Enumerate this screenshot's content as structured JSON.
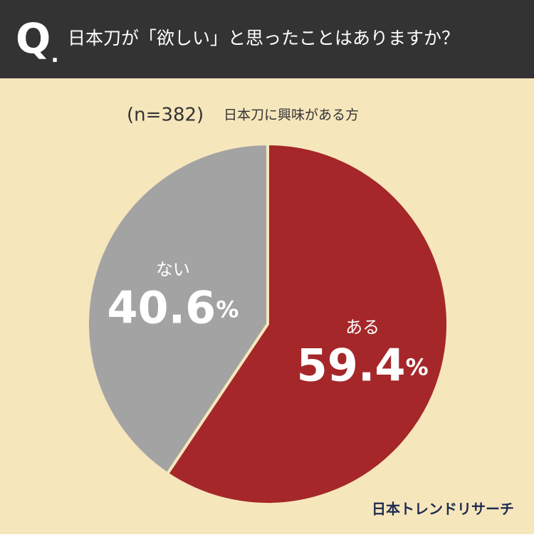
{
  "header": {
    "q_mark": "Q.",
    "title": "日本刀が「欲しい」と思ったことはありますか？"
  },
  "chart_data": {
    "type": "pie",
    "sample": "(n=382)",
    "subtitle": "日本刀に興味がある方",
    "categories": [
      "ある",
      "ない"
    ],
    "values": [
      59.4,
      40.6
    ],
    "value_labels": [
      "59.4%",
      "40.6%"
    ],
    "colors": [
      "#a52729",
      "#a3a3a3"
    ]
  },
  "footer": {
    "brand": "日本トレンドリサーチ"
  }
}
